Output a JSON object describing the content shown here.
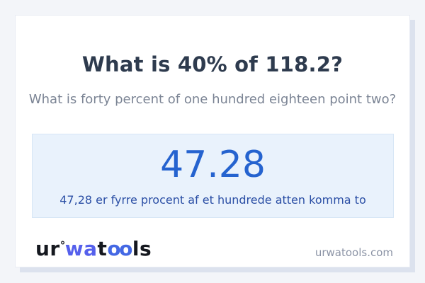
{
  "page": {
    "title": "What is 40% of 118.2?",
    "subtitle": "What is forty percent of one hundred eighteen point two?",
    "answer": {
      "value": "47.28",
      "sentence": "47,28 er fyrre procent af et hundrede atten komma to"
    },
    "footer": {
      "logo": {
        "part_ur": "ur",
        "ring": "°",
        "part_wa": "wa",
        "part_t": "t",
        "part_oo": "oo",
        "part_ls": "ls"
      },
      "website": "urwatools.com"
    },
    "colors": {
      "page_background": "#f3f5f9",
      "card_background": "#ffffff",
      "card_shadow": "#dce2ee",
      "title_text": "#2e3b4e",
      "subtitle_text": "#7b8494",
      "answer_box_background": "#e9f2fc",
      "answer_box_border": "#d7e6f6",
      "answer_value_blue": "#2563cf",
      "answer_sentence_blue": "#2b4fa5",
      "logo_black": "#15181f",
      "logo_indigo_wa": "#5560ec",
      "logo_blue_oo": "#4468e4",
      "site_url_gray": "#8b93a5"
    }
  }
}
